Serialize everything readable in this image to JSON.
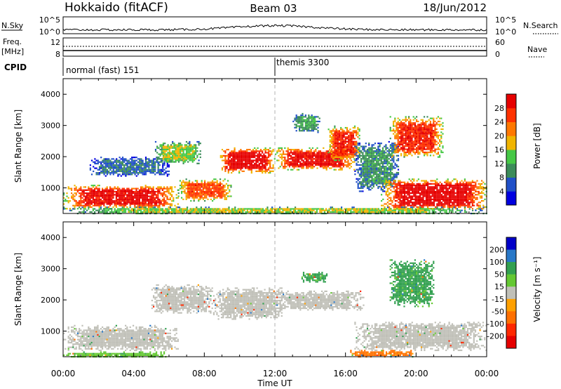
{
  "header": {
    "radar": "Hokkaido (fitACF)",
    "beam": "Beam 03",
    "date": "18/Jun/2012"
  },
  "top_panels": {
    "nsky_label": "N.Sky",
    "nsky_ticks": [
      "10^5",
      "10^0"
    ],
    "nsearch_label": "N.Search",
    "nsearch_ticks": [
      "10^5",
      "10^0"
    ],
    "freq_label": "Freq.",
    "freq_unit": "[MHz]",
    "freq_ticks": [
      "12",
      "8"
    ],
    "nave_label": "Nave",
    "nave_ticks": [
      "60",
      "0"
    ],
    "cpid_label": "CPID",
    "cpid_segments": [
      {
        "start_hour": 0,
        "name": "normal (fast) 151"
      },
      {
        "start_hour": 12,
        "name": "themis 3300"
      }
    ]
  },
  "chart_data": [
    {
      "type": "heatmap",
      "name": "power",
      "ylabel": "Slant Range [km]",
      "yticks": [
        1000,
        2000,
        3000,
        4000
      ],
      "ylim": [
        180,
        4500
      ],
      "xlim_hours": [
        0,
        24
      ],
      "colorbar": {
        "label": "Power [dB]",
        "ticks": [
          4,
          8,
          12,
          16,
          20,
          24,
          28
        ],
        "range": [
          0,
          32
        ],
        "colors": [
          "#0000e0",
          "#2050c8",
          "#3c8c5a",
          "#46c846",
          "#f0b400",
          "#ff7800",
          "#ff3200",
          "#e60000"
        ]
      },
      "echo_regions": [
        {
          "h0": 0.0,
          "h1": 6.5,
          "r0": 350,
          "r1": 1100,
          "level": 26
        },
        {
          "h0": 1.5,
          "h1": 6.0,
          "r0": 1400,
          "r1": 2000,
          "level": 7
        },
        {
          "h0": 5.2,
          "h1": 7.8,
          "r0": 1800,
          "r1": 2500,
          "level": 14
        },
        {
          "h0": 6.5,
          "h1": 9.5,
          "r0": 600,
          "r1": 1300,
          "level": 22
        },
        {
          "h0": 8.8,
          "h1": 12.0,
          "r0": 1500,
          "r1": 2300,
          "level": 27
        },
        {
          "h0": 12.0,
          "h1": 16.5,
          "r0": 1600,
          "r1": 2300,
          "level": 26
        },
        {
          "h0": 15.0,
          "h1": 16.8,
          "r0": 1900,
          "r1": 3000,
          "level": 24
        },
        {
          "h0": 13.0,
          "h1": 14.5,
          "r0": 2800,
          "r1": 3400,
          "level": 10
        },
        {
          "h0": 16.5,
          "h1": 19.0,
          "r0": 900,
          "r1": 2500,
          "level": 9
        },
        {
          "h0": 18.5,
          "h1": 21.5,
          "r0": 2000,
          "r1": 3300,
          "level": 24
        },
        {
          "h0": 18.0,
          "h1": 24.0,
          "r0": 300,
          "r1": 1300,
          "level": 27
        },
        {
          "h0": 0.0,
          "h1": 24.0,
          "r0": 180,
          "r1": 400,
          "level": 14
        }
      ]
    },
    {
      "type": "heatmap",
      "name": "velocity",
      "ylabel": "Slant Range [km]",
      "yticks": [
        1000,
        2000,
        3000,
        4000
      ],
      "ylim": [
        180,
        4500
      ],
      "xlim_hours": [
        0,
        24
      ],
      "xticks": [
        "00:00",
        "04:00",
        "08:00",
        "12:00",
        "16:00",
        "20:00",
        "00:00"
      ],
      "xlabel": "Time UT",
      "colorbar": {
        "label": "Velocity [m s⁻¹]",
        "ticks": [
          "200",
          "100",
          "50",
          "15",
          "-15",
          "-50",
          "-100",
          "-200"
        ],
        "colors": [
          "#0000c8",
          "#2878c8",
          "#32a050",
          "#64c832",
          "#c0c0b8",
          "#ffa000",
          "#ff7000",
          "#ff2800",
          "#e60000"
        ]
      },
      "echo_regions": [
        {
          "h0": 0.0,
          "h1": 6.5,
          "r0": 400,
          "r1": 1200,
          "level": 0
        },
        {
          "h0": 5.0,
          "h1": 8.5,
          "r0": 1600,
          "r1": 2500,
          "level": 0
        },
        {
          "h0": 8.5,
          "h1": 12.5,
          "r0": 1400,
          "r1": 2400,
          "level": 0
        },
        {
          "h0": 12.0,
          "h1": 17.0,
          "r0": 1700,
          "r1": 2300,
          "level": 0
        },
        {
          "h0": 13.5,
          "h1": 15.0,
          "r0": 2600,
          "r1": 2900,
          "level": 60
        },
        {
          "h0": 18.5,
          "h1": 21.0,
          "r0": 1800,
          "r1": 3300,
          "level": 60
        },
        {
          "h0": 16.5,
          "h1": 24.0,
          "r0": 400,
          "r1": 1300,
          "level": 0
        },
        {
          "h0": 16.0,
          "h1": 20.0,
          "r0": 200,
          "r1": 400,
          "level": -60
        },
        {
          "h0": 0.0,
          "h1": 6.0,
          "r0": 180,
          "r1": 350,
          "level": 40
        }
      ]
    }
  ]
}
